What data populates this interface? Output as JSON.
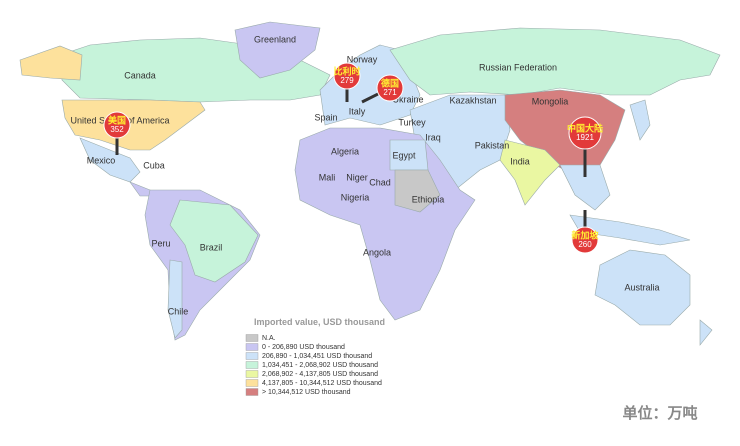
{
  "map": {
    "country_labels": [
      "Greenland",
      "Canada",
      "Norway",
      "Russian Federation",
      "Kazakhstan",
      "Mongolia",
      "United States of America",
      "Ukraine",
      "Spain",
      "Italy",
      "Turkey",
      "Iraq",
      "Algeria",
      "Egypt",
      "Pakistan",
      "Mexico",
      "Cuba",
      "India",
      "Mali",
      "Niger",
      "Chad",
      "Nigeria",
      "Ethiopia",
      "Peru",
      "Brazil",
      "Angola",
      "Australia",
      "Chile"
    ],
    "pins": [
      {
        "name": "美国",
        "value": 352
      },
      {
        "name": "比利时",
        "value": 279
      },
      {
        "name": "德国",
        "value": 271
      },
      {
        "name": "中国大陆",
        "value": 1921
      },
      {
        "name": "新加坡",
        "value": 260
      }
    ],
    "legend": {
      "title": "Imported value, USD thousand",
      "items": [
        {
          "label": "N.A.",
          "color": "#c8c8c8"
        },
        {
          "label": "0 - 206,890 USD thousand",
          "color": "#c9c6f2"
        },
        {
          "label": "206,890 - 1,034,451 USD thousand",
          "color": "#cce2f8"
        },
        {
          "label": "1,034,451 - 2,068,902 USD thousand",
          "color": "#c6f3da"
        },
        {
          "label": "2,068,902 - 4,137,805 USD thousand",
          "color": "#eaf7a2"
        },
        {
          "label": "4,137,805 - 10,344,512 USD thousand",
          "color": "#fde19c"
        },
        {
          "label": "> 10,344,512 USD thousand",
          "color": "#d57f7f"
        }
      ]
    },
    "unit": "单位：万吨"
  }
}
